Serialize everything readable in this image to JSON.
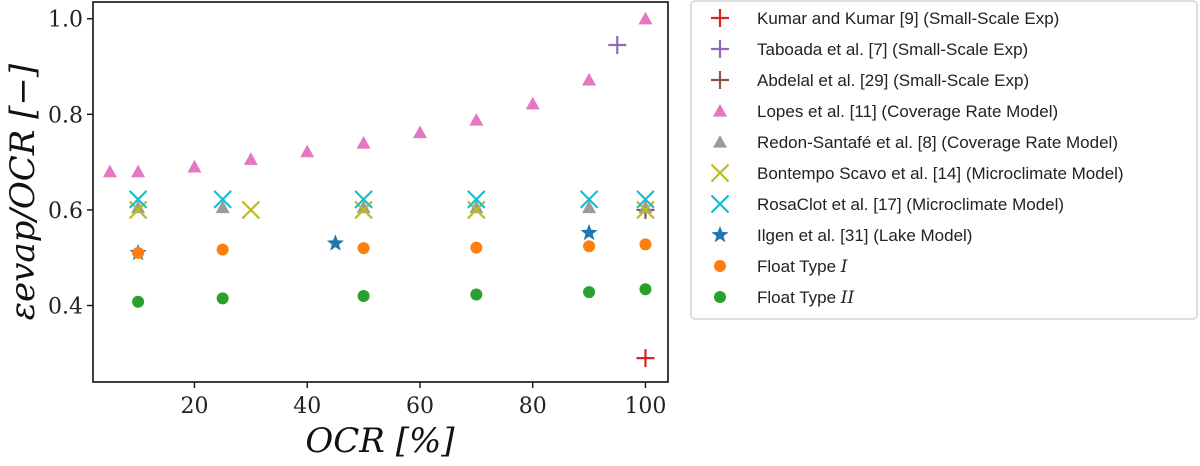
{
  "chart_data": {
    "type": "scatter",
    "title": "",
    "xlabel": "OCR [%]",
    "ylabel": "εevap/OCR [−]",
    "xlim": [
      2,
      104
    ],
    "ylim": [
      0.24,
      1.035
    ],
    "xticks": [
      20,
      40,
      60,
      80,
      100
    ],
    "xtick_labels": [
      "20",
      "40",
      "60",
      "80",
      "100"
    ],
    "yticks": [
      0.4,
      0.6,
      0.8,
      1.0
    ],
    "ytick_labels": [
      "0.4",
      "0.6",
      "0.8",
      "1.0"
    ],
    "grid": false,
    "legend_position": "outside-right",
    "series": [
      {
        "name": "Kumar and Kumar [9] (Small-Scale Exp)",
        "marker": "plus",
        "color": "#d62728",
        "points": [
          [
            100,
            0.29
          ]
        ]
      },
      {
        "name": "Taboada et al. [7] (Small-Scale Exp)",
        "marker": "plus",
        "color": "#9467bd",
        "points": [
          [
            95,
            0.945
          ]
        ]
      },
      {
        "name": "Abdelal et al. [29] (Small-Scale Exp)",
        "marker": "plus",
        "color": "#8c564b",
        "points": [
          [
            100,
            0.6
          ]
        ]
      },
      {
        "name": "Lopes et al. [11] (Coverage Rate Model)",
        "marker": "triangle",
        "color": "#e377c2",
        "points": [
          [
            5,
            0.68
          ],
          [
            10,
            0.68
          ],
          [
            20,
            0.69
          ],
          [
            30,
            0.706
          ],
          [
            40,
            0.722
          ],
          [
            50,
            0.74
          ],
          [
            60,
            0.762
          ],
          [
            70,
            0.788
          ],
          [
            80,
            0.822
          ],
          [
            90,
            0.872
          ],
          [
            100,
            1.0
          ]
        ]
      },
      {
        "name": "Redon-Santafé et al. [8] (Coverage Rate Model)",
        "marker": "triangle",
        "color": "#9b9b9b",
        "points": [
          [
            10,
            0.605
          ],
          [
            25,
            0.605
          ],
          [
            50,
            0.605
          ],
          [
            70,
            0.605
          ],
          [
            90,
            0.605
          ],
          [
            100,
            0.605
          ]
        ]
      },
      {
        "name": "Bontempo Scavo et al. [14] (Microclimate Model)",
        "marker": "x",
        "color": "#bcbd22",
        "points": [
          [
            10,
            0.6
          ],
          [
            30,
            0.6
          ],
          [
            50,
            0.6
          ],
          [
            70,
            0.6
          ],
          [
            100,
            0.6
          ]
        ]
      },
      {
        "name": "RosaClot et al. [17] (Microclimate Model)",
        "marker": "x",
        "color": "#17becf",
        "points": [
          [
            10,
            0.622
          ],
          [
            25,
            0.622
          ],
          [
            50,
            0.622
          ],
          [
            70,
            0.622
          ],
          [
            90,
            0.622
          ],
          [
            100,
            0.622
          ]
        ]
      },
      {
        "name": "Ilgen et al. [31] (Lake Model)",
        "marker": "star",
        "color": "#1f77b4",
        "points": [
          [
            10,
            0.51
          ],
          [
            45,
            0.53
          ],
          [
            90,
            0.552
          ]
        ]
      },
      {
        "name": "Float Type I",
        "name_prefix": "Float Type ",
        "name_italic": "I",
        "marker": "circle",
        "color": "#ff7f0e",
        "points": [
          [
            10,
            0.51
          ],
          [
            25,
            0.517
          ],
          [
            50,
            0.52
          ],
          [
            70,
            0.521
          ],
          [
            90,
            0.524
          ],
          [
            100,
            0.528
          ]
        ]
      },
      {
        "name": "Float Type II",
        "name_prefix": "Float Type ",
        "name_italic": "II",
        "marker": "circle",
        "color": "#2ca02c",
        "points": [
          [
            10,
            0.408
          ],
          [
            25,
            0.415
          ],
          [
            50,
            0.42
          ],
          [
            70,
            0.423
          ],
          [
            90,
            0.428
          ],
          [
            100,
            0.434
          ]
        ]
      }
    ]
  }
}
